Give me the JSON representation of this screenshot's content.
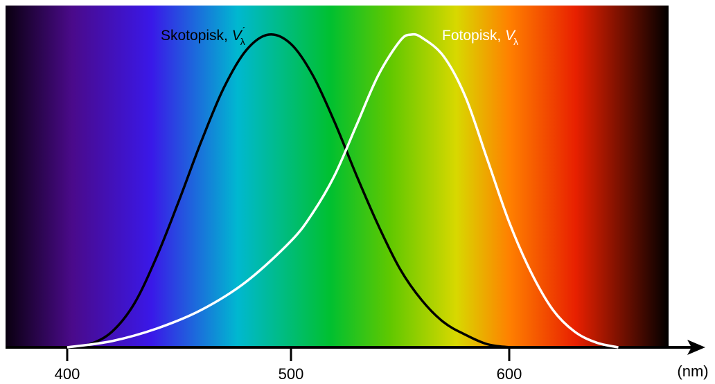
{
  "chart_data": {
    "type": "line",
    "title": "",
    "xlabel": "",
    "ylabel": "",
    "x_unit": "(nm)",
    "xlim": [
      380,
      660
    ],
    "ylim": [
      0,
      1
    ],
    "grid": false,
    "x_ticks": [
      400,
      500,
      600
    ],
    "x_tick_labels": [
      "400",
      "500",
      "600"
    ],
    "background": "visible-spectrum-gradient",
    "spectrum_colors": [
      "#0a0010",
      "#4a0a8a",
      "#3a18e8",
      "#00b8d0",
      "#00c030",
      "#60c800",
      "#d8d800",
      "#ff8000",
      "#e82000",
      "#000000"
    ],
    "series": [
      {
        "name_text": "Skotopisk, ",
        "symbol": "V",
        "subscript": "λ",
        "prime": "´",
        "color": "#000000",
        "x": [
          400,
          410,
          420,
          430,
          440,
          450,
          460,
          470,
          480,
          490,
          500,
          510,
          520,
          530,
          540,
          550,
          560,
          570,
          580,
          590,
          600
        ],
        "y": [
          0.0,
          0.01,
          0.05,
          0.14,
          0.29,
          0.47,
          0.66,
          0.83,
          0.95,
          1.0,
          0.97,
          0.87,
          0.72,
          0.55,
          0.39,
          0.25,
          0.15,
          0.08,
          0.04,
          0.01,
          0.0
        ]
      },
      {
        "name_text": "Fotopisk, ",
        "symbol": "V",
        "subscript": "λ",
        "prime": "",
        "color": "#ffffff",
        "x": [
          400,
          420,
          440,
          460,
          480,
          500,
          510,
          520,
          530,
          540,
          550,
          555,
          560,
          570,
          580,
          590,
          600,
          610,
          620,
          630,
          640,
          650
        ],
        "y": [
          0.0,
          0.02,
          0.06,
          0.12,
          0.21,
          0.34,
          0.43,
          0.55,
          0.71,
          0.87,
          0.98,
          1.0,
          0.99,
          0.93,
          0.8,
          0.6,
          0.4,
          0.24,
          0.12,
          0.05,
          0.015,
          0.0
        ]
      }
    ]
  }
}
